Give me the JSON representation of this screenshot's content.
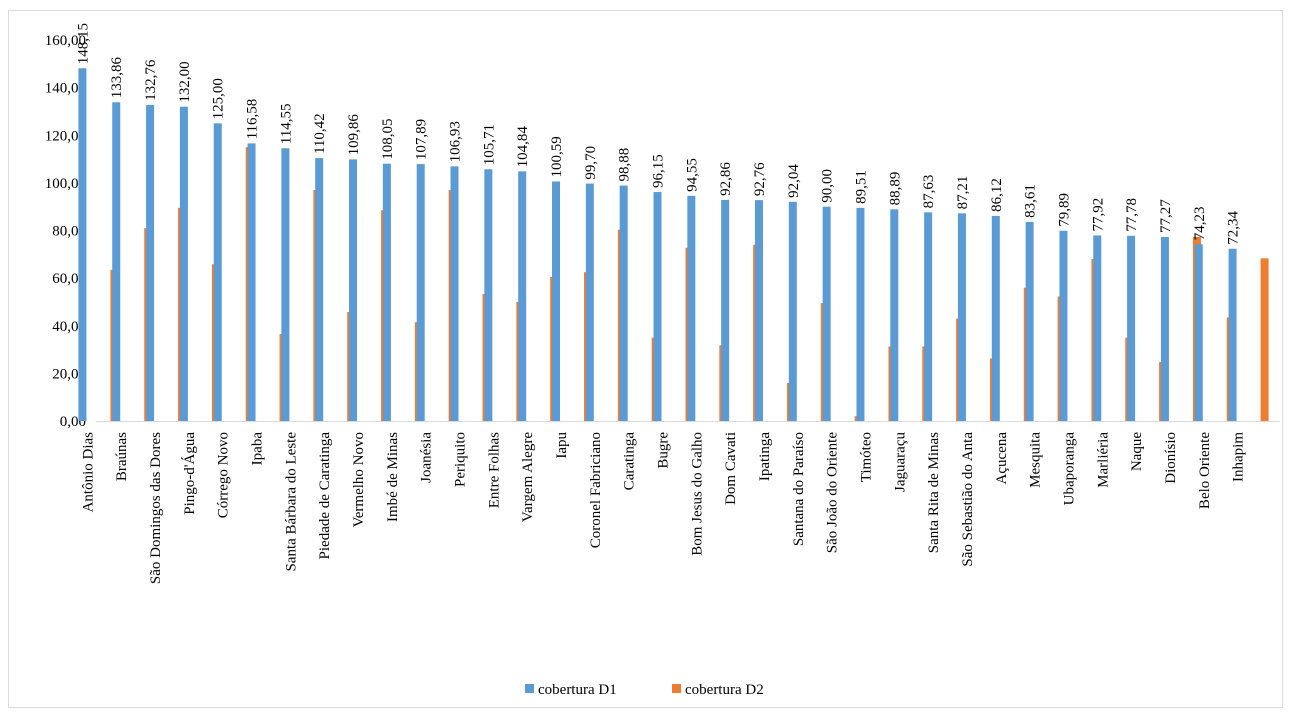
{
  "chart_data": {
    "type": "bar",
    "categories": [
      "Antônio Dias",
      "Braúnas",
      "São Domingos das Dores",
      "Pingo-d'Água",
      "Córrego Novo",
      "Ipaba",
      "Santa Bárbara do Leste",
      "Piedade de Caratinga",
      "Vermelho Novo",
      "Imbé de Minas",
      "Joanésia",
      "Periquito",
      "Entre Folhas",
      "Vargem Alegre",
      "Iapu",
      "Coronel Fabriciano",
      "Caratinga",
      "Bugre",
      "Bom Jesus do Galho",
      "Dom Cavati",
      "Ipatinga",
      "Santana do Paraíso",
      "São João do Oriente",
      "Timóteo",
      "Jaguaraçu",
      "Santa Rita de Minas",
      "São Sebastião do Anta",
      "Açucena",
      "Mesquita",
      "Ubaporanga",
      "Marliéria",
      "Naque",
      "Dionísio",
      "Belo Oriente",
      "Inhapim"
    ],
    "series": [
      {
        "name": "cobertura D1",
        "color": "#5b9bd5",
        "values": [
          148.15,
          133.86,
          132.76,
          132.0,
          125.0,
          116.58,
          114.55,
          110.42,
          109.86,
          108.05,
          107.89,
          106.93,
          105.71,
          104.84,
          100.59,
          99.7,
          98.88,
          96.15,
          94.55,
          92.86,
          92.76,
          92.04,
          90.0,
          89.51,
          88.89,
          87.63,
          87.21,
          86.12,
          83.61,
          79.89,
          77.92,
          77.78,
          77.27,
          74.23,
          72.34
        ],
        "labels": [
          "148,15",
          "133,86",
          "132,76",
          "132,00",
          "125,00",
          "116,58",
          "114,55",
          "110,42",
          "109,86",
          "108,05",
          "107,89",
          "106,93",
          "105,71",
          "104,84",
          "100,59",
          "99,70",
          "98,88",
          "96,15",
          "94,55",
          "92,86",
          "92,76",
          "92,04",
          "90,00",
          "89,51",
          "88,89",
          "87,63",
          "87,21",
          "86,12",
          "83,61",
          "79,89",
          "77,92",
          "77,78",
          "77,27",
          "74,23",
          "72,34"
        ]
      },
      {
        "name": "cobertura D2",
        "color": "#ed7d31",
        "values": [
          63.5,
          81.0,
          89.5,
          65.8,
          115.0,
          36.5,
          97.0,
          45.8,
          88.5,
          41.5,
          97.0,
          53.3,
          50.0,
          60.5,
          62.5,
          80.3,
          35.0,
          72.8,
          31.8,
          74.0,
          16.0,
          49.5,
          2.0,
          31.3,
          31.3,
          43.0,
          26.3,
          56.0,
          52.3,
          68.0,
          35.0,
          24.8,
          77.3,
          43.5,
          68.3
        ]
      }
    ],
    "yticks": [
      "0,00",
      "20,00",
      "40,00",
      "60,00",
      "80,00",
      "100,00",
      "120,00",
      "140,00",
      "160,00"
    ],
    "ylim": [
      0,
      160
    ],
    "grid": false,
    "legend": "bottom"
  }
}
